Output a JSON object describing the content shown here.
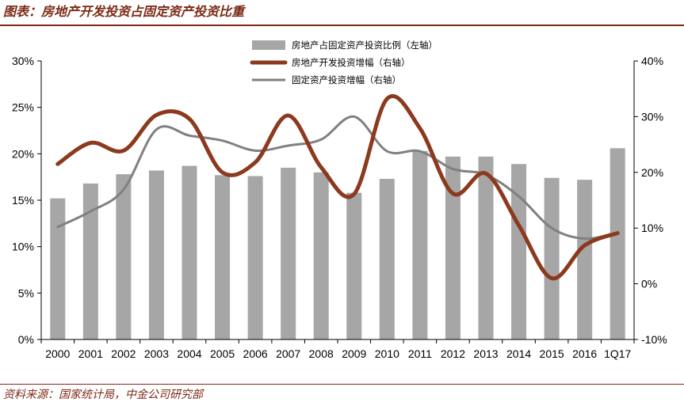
{
  "header": {
    "title": "图表：房地产开发投资占固定资产投资比重"
  },
  "footer": {
    "source": "资料来源：国家统计局，中金公司研究部"
  },
  "chart_data": {
    "type": "bar",
    "title": "图表：房地产开发投资占固定资产投资比重",
    "categories": [
      "2000",
      "2001",
      "2002",
      "2003",
      "2004",
      "2005",
      "2006",
      "2007",
      "2008",
      "2009",
      "2010",
      "2011",
      "2012",
      "2013",
      "2014",
      "2015",
      "2016",
      "1Q17"
    ],
    "series": [
      {
        "name": "房地产占固定资产投资比例（左轴）",
        "type": "bar",
        "axis": "left",
        "color": "#a6a6a6",
        "values": [
          15.2,
          16.8,
          17.8,
          18.2,
          18.7,
          17.7,
          17.6,
          18.5,
          18.0,
          15.8,
          17.3,
          20.3,
          19.7,
          19.7,
          18.9,
          17.4,
          17.2,
          20.6
        ]
      },
      {
        "name": "房地产开发投资增幅（右轴）",
        "type": "line",
        "axis": "right",
        "color": "#8b3a1d",
        "values": [
          21.5,
          25.3,
          23.9,
          30.3,
          29.6,
          20.0,
          21.8,
          30.2,
          20.9,
          16.1,
          33.2,
          27.9,
          16.2,
          19.8,
          10.5,
          1.0,
          6.9,
          9.1
        ]
      },
      {
        "name": "固定资产投资增幅（右轴）",
        "type": "line",
        "axis": "right",
        "color": "#808080",
        "values": [
          10.2,
          13.0,
          16.9,
          27.7,
          26.6,
          25.7,
          23.9,
          24.8,
          25.9,
          30.0,
          23.8,
          23.8,
          20.6,
          19.6,
          15.7,
          10.0,
          8.1,
          9.2
        ]
      }
    ],
    "left_axis": {
      "ylim": [
        0,
        30
      ],
      "ticks": [
        "0%",
        "5%",
        "10%",
        "15%",
        "20%",
        "25%",
        "30%"
      ]
    },
    "right_axis": {
      "ylim": [
        -10,
        40
      ],
      "ticks": [
        "-10%",
        "0%",
        "10%",
        "20%",
        "30%",
        "40%"
      ]
    },
    "legend_position": "top-center",
    "grid": false
  }
}
